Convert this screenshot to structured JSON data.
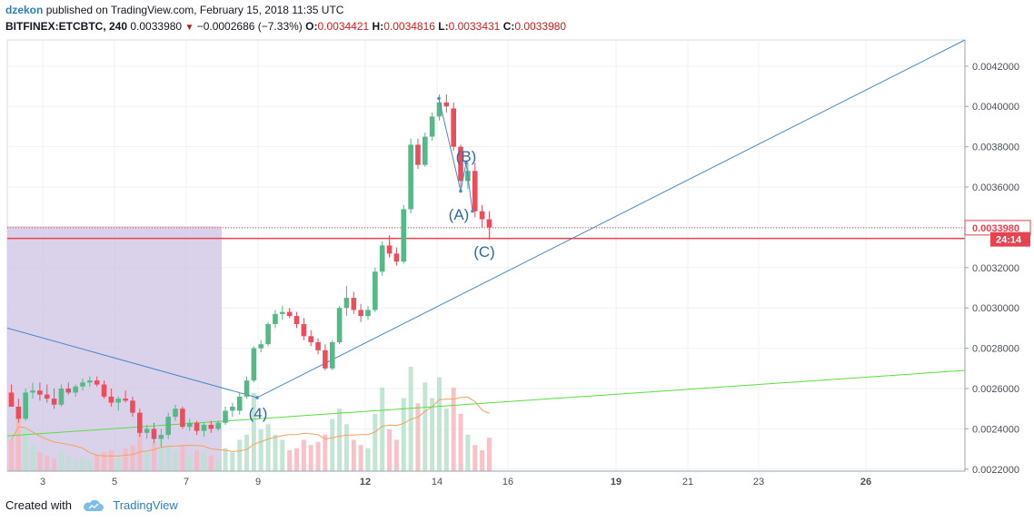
{
  "header": {
    "author": "dzekon",
    "published_text": "published on TradingView.com, February 15, 2018 11:35 UTC",
    "symbol": "BITFINEX:ETCBTC, 240",
    "last": "0.0033980",
    "change": "−0.0002686 (−7.33%)",
    "o_label": "O:",
    "o_value": "0.0034421",
    "h_label": "H:",
    "h_value": "0.0034816",
    "l_label": "L:",
    "l_value": "0.0033431",
    "c_label": "C:",
    "c_value": "0.0033980",
    "down_arrow": "▼"
  },
  "footer": {
    "created_with": "Created with",
    "brand": "TradingView",
    "logo_icon": "tradingview-cloud-icon"
  },
  "colors": {
    "up": "#53b987",
    "down": "#eb4d5c",
    "vol_up": "#b9e2cc",
    "vol_down": "#f6b9bf",
    "trend_blue": "#4a89c8",
    "trend_green": "#56e03c",
    "support_red": "#e8424f",
    "ma_orange": "#f5a25c",
    "shade": "#cdc3e3",
    "grid": "#eef1f5"
  },
  "chart_data": {
    "type": "candlestick",
    "symbol": "BITFINEX:ETCBTC",
    "interval": "240",
    "price_axis_ticks": [
      "0.0022000",
      "0.0024000",
      "0.0026000",
      "0.0028000",
      "0.0030000",
      "0.0032000",
      "0.0034000",
      "0.0036000",
      "0.0038000",
      "0.0040000",
      "0.0042000"
    ],
    "ylim": [
      0.00219,
      0.00433
    ],
    "x_ticks": [
      "3",
      "5",
      "7",
      "9",
      "12",
      "14",
      "16",
      "19",
      "21",
      "23",
      "26"
    ],
    "last_price_label": "0.0033980",
    "countdown_label": "24:14",
    "support_level": 0.003345,
    "wave_labels": [
      "(4)",
      "(A)",
      "(B)",
      "(C)"
    ],
    "candles": [
      [
        0,
        0.00258,
        0.00262,
        0.00252,
        0.00251
      ],
      [
        1,
        0.00251,
        0.00255,
        0.00243,
        0.00245
      ],
      [
        2,
        0.00245,
        0.0026,
        0.00244,
        0.00258
      ],
      [
        3,
        0.00258,
        0.00263,
        0.00255,
        0.00259
      ],
      [
        4,
        0.00259,
        0.00263,
        0.00254,
        0.00257
      ],
      [
        5,
        0.00257,
        0.00262,
        0.00253,
        0.00255
      ],
      [
        6,
        0.00255,
        0.0026,
        0.0025,
        0.00252
      ],
      [
        7,
        0.00252,
        0.00262,
        0.00251,
        0.0026
      ],
      [
        8,
        0.0026,
        0.00263,
        0.00257,
        0.00258
      ],
      [
        9,
        0.00258,
        0.00262,
        0.00256,
        0.00261
      ],
      [
        10,
        0.00261,
        0.00265,
        0.00259,
        0.00263
      ],
      [
        11,
        0.00263,
        0.00266,
        0.00261,
        0.00264
      ],
      [
        12,
        0.00264,
        0.00266,
        0.00261,
        0.00262
      ],
      [
        13,
        0.00262,
        0.00264,
        0.00255,
        0.00256
      ],
      [
        14,
        0.00256,
        0.0026,
        0.00251,
        0.00253
      ],
      [
        15,
        0.00253,
        0.00256,
        0.00249,
        0.00255
      ],
      [
        16,
        0.00255,
        0.00259,
        0.00253,
        0.00254
      ],
      [
        17,
        0.00254,
        0.00256,
        0.00246,
        0.00248
      ],
      [
        18,
        0.00248,
        0.0025,
        0.00236,
        0.00238
      ],
      [
        19,
        0.00238,
        0.00242,
        0.00235,
        0.0024
      ],
      [
        20,
        0.0024,
        0.00243,
        0.00233,
        0.00235
      ],
      [
        21,
        0.00235,
        0.0024,
        0.00231,
        0.00237
      ],
      [
        22,
        0.00237,
        0.00248,
        0.00235,
        0.00246
      ],
      [
        23,
        0.00246,
        0.00252,
        0.00244,
        0.0025
      ],
      [
        24,
        0.0025,
        0.00251,
        0.0024,
        0.00241
      ],
      [
        25,
        0.00241,
        0.00245,
        0.00239,
        0.00243
      ],
      [
        26,
        0.00243,
        0.00244,
        0.00237,
        0.00239
      ],
      [
        27,
        0.00239,
        0.00243,
        0.00236,
        0.00242
      ],
      [
        28,
        0.00242,
        0.00244,
        0.00238,
        0.0024
      ],
      [
        29,
        0.0024,
        0.00244,
        0.00239,
        0.00243
      ],
      [
        30,
        0.00243,
        0.00251,
        0.00242,
        0.00249
      ],
      [
        31,
        0.00249,
        0.00253,
        0.00246,
        0.00251
      ],
      [
        32,
        0.00249,
        0.00258,
        0.00247,
        0.00256
      ],
      [
        33,
        0.00256,
        0.00266,
        0.00255,
        0.00264
      ],
      [
        34,
        0.00264,
        0.00281,
        0.00263,
        0.0028
      ],
      [
        35,
        0.0028,
        0.00284,
        0.00278,
        0.00282
      ],
      [
        36,
        0.00282,
        0.00293,
        0.00281,
        0.00292
      ],
      [
        37,
        0.00292,
        0.00299,
        0.0029,
        0.00297
      ],
      [
        38,
        0.00297,
        0.00301,
        0.00294,
        0.00298
      ],
      [
        39,
        0.00298,
        0.003,
        0.00295,
        0.00296
      ],
      [
        40,
        0.00296,
        0.00298,
        0.0029,
        0.00292
      ],
      [
        41,
        0.00292,
        0.00295,
        0.00284,
        0.00286
      ],
      [
        42,
        0.00286,
        0.00289,
        0.00281,
        0.00283
      ],
      [
        43,
        0.00283,
        0.00285,
        0.00277,
        0.00279
      ],
      [
        44,
        0.00279,
        0.00282,
        0.00269,
        0.0027
      ],
      [
        45,
        0.0027,
        0.00284,
        0.00269,
        0.00283
      ],
      [
        46,
        0.00283,
        0.00301,
        0.00282,
        0.003
      ],
      [
        47,
        0.003,
        0.00311,
        0.00296,
        0.00305
      ],
      [
        48,
        0.00305,
        0.00308,
        0.00297,
        0.00299
      ],
      [
        49,
        0.00299,
        0.00302,
        0.00293,
        0.00296
      ],
      [
        50,
        0.00296,
        0.00301,
        0.00294,
        0.00299
      ],
      [
        51,
        0.00299,
        0.0032,
        0.00298,
        0.00318
      ],
      [
        52,
        0.00318,
        0.00333,
        0.00316,
        0.00331
      ],
      [
        53,
        0.00331,
        0.00336,
        0.00325,
        0.00327
      ],
      [
        54,
        0.00327,
        0.0033,
        0.00321,
        0.00323
      ],
      [
        55,
        0.00323,
        0.00351,
        0.00322,
        0.00349
      ],
      [
        56,
        0.00349,
        0.00384,
        0.00347,
        0.00381
      ],
      [
        57,
        0.00381,
        0.00384,
        0.00369,
        0.00371
      ],
      [
        58,
        0.00371,
        0.00387,
        0.0037,
        0.00385
      ],
      [
        59,
        0.00385,
        0.00397,
        0.00383,
        0.00395
      ],
      [
        60,
        0.00395,
        0.00406,
        0.00393,
        0.00402
      ],
      [
        61,
        0.00402,
        0.00406,
        0.00397,
        0.004
      ],
      [
        62,
        0.00399,
        0.00402,
        0.00378,
        0.0038
      ],
      [
        63,
        0.0038,
        0.00381,
        0.0036,
        0.00363
      ],
      [
        64,
        0.00363,
        0.00372,
        0.00359,
        0.00368
      ],
      [
        65,
        0.00368,
        0.00372,
        0.00345,
        0.00348
      ],
      [
        66,
        0.00348,
        0.00351,
        0.0034,
        0.00344
      ],
      [
        67,
        0.00344,
        0.00348,
        0.00334,
        0.0034
      ]
    ],
    "volumes": [
      [
        0,
        "d",
        0.3
      ],
      [
        1,
        "d",
        0.55
      ],
      [
        2,
        "u",
        0.4
      ],
      [
        3,
        "u",
        0.25
      ],
      [
        4,
        "d",
        0.18
      ],
      [
        5,
        "d",
        0.15
      ],
      [
        6,
        "d",
        0.12
      ],
      [
        7,
        "u",
        0.2
      ],
      [
        8,
        "u",
        0.15
      ],
      [
        9,
        "u",
        0.1
      ],
      [
        10,
        "u",
        0.12
      ],
      [
        11,
        "u",
        0.1
      ],
      [
        12,
        "d",
        0.15
      ],
      [
        13,
        "d",
        0.18
      ],
      [
        14,
        "d",
        0.2
      ],
      [
        15,
        "u",
        0.12
      ],
      [
        16,
        "d",
        0.22
      ],
      [
        17,
        "d",
        0.25
      ],
      [
        18,
        "d",
        0.4
      ],
      [
        19,
        "u",
        0.18
      ],
      [
        20,
        "d",
        0.28
      ],
      [
        21,
        "u",
        0.3
      ],
      [
        22,
        "u",
        0.25
      ],
      [
        23,
        "u",
        0.2
      ],
      [
        24,
        "d",
        0.25
      ],
      [
        25,
        "u",
        0.15
      ],
      [
        26,
        "d",
        0.2
      ],
      [
        27,
        "u",
        0.18
      ],
      [
        28,
        "d",
        0.15
      ],
      [
        29,
        "u",
        0.1
      ],
      [
        30,
        "u",
        0.22
      ],
      [
        31,
        "u",
        0.18
      ],
      [
        32,
        "u",
        0.3
      ],
      [
        33,
        "u",
        0.35
      ],
      [
        34,
        "u",
        0.75
      ],
      [
        35,
        "u",
        0.4
      ],
      [
        36,
        "u",
        0.45
      ],
      [
        37,
        "u",
        0.35
      ],
      [
        38,
        "u",
        0.3
      ],
      [
        39,
        "d",
        0.2
      ],
      [
        40,
        "d",
        0.22
      ],
      [
        41,
        "d",
        0.3
      ],
      [
        42,
        "d",
        0.25
      ],
      [
        43,
        "d",
        0.28
      ],
      [
        44,
        "d",
        0.35
      ],
      [
        45,
        "u",
        0.5
      ],
      [
        46,
        "u",
        0.6
      ],
      [
        47,
        "u",
        0.45
      ],
      [
        48,
        "d",
        0.3
      ],
      [
        49,
        "d",
        0.25
      ],
      [
        50,
        "u",
        0.22
      ],
      [
        51,
        "u",
        0.55
      ],
      [
        52,
        "u",
        0.8
      ],
      [
        53,
        "d",
        0.4
      ],
      [
        54,
        "d",
        0.3
      ],
      [
        55,
        "u",
        0.7
      ],
      [
        56,
        "u",
        1.0
      ],
      [
        57,
        "d",
        0.65
      ],
      [
        58,
        "u",
        0.85
      ],
      [
        59,
        "u",
        0.7
      ],
      [
        60,
        "u",
        0.9
      ],
      [
        61,
        "u",
        0.6
      ],
      [
        62,
        "d",
        0.8
      ],
      [
        63,
        "d",
        0.55
      ],
      [
        64,
        "u",
        0.35
      ],
      [
        65,
        "d",
        0.25
      ],
      [
        66,
        "d",
        0.2
      ],
      [
        67,
        "d",
        0.32
      ]
    ]
  }
}
